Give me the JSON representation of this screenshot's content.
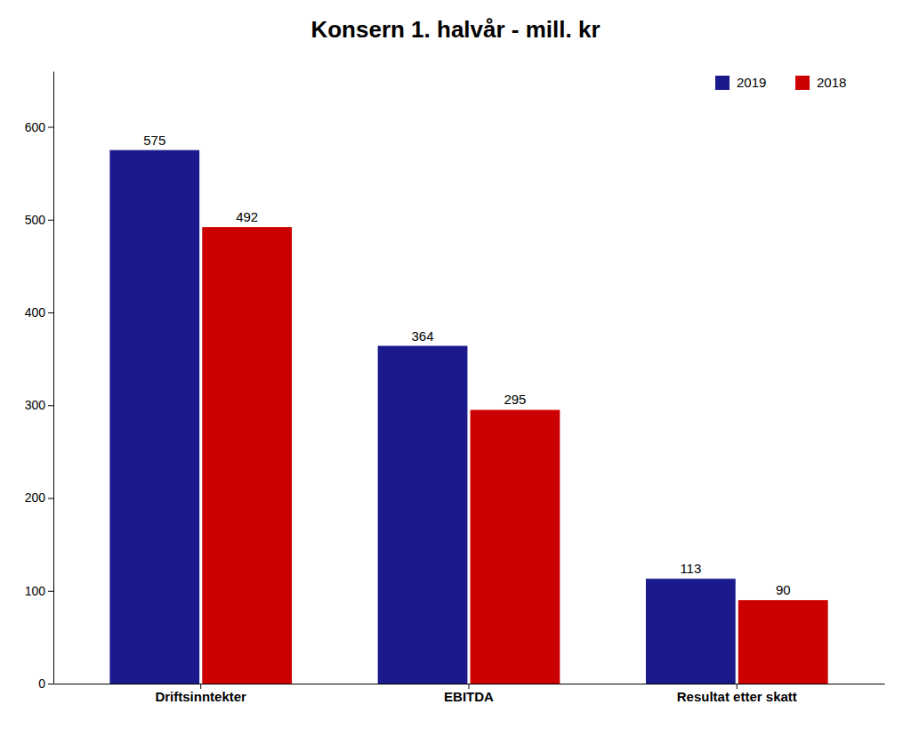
{
  "chart_data": {
    "type": "bar",
    "title": "Konsern 1. halvår - mill. kr",
    "categories": [
      "Driftsinntekter",
      "EBITDA",
      "Resultat etter skatt"
    ],
    "series": [
      {
        "name": "2019",
        "color": "#1a1a8c",
        "values": [
          575,
          364,
          113
        ]
      },
      {
        "name": "2018",
        "color": "#cc0000",
        "values": [
          492,
          295,
          90
        ]
      }
    ],
    "ylim": [
      0,
      660
    ],
    "yticks": [
      0,
      100,
      200,
      300,
      400,
      500,
      600
    ],
    "grid": false,
    "legend": "upper right",
    "data_labels": true
  }
}
